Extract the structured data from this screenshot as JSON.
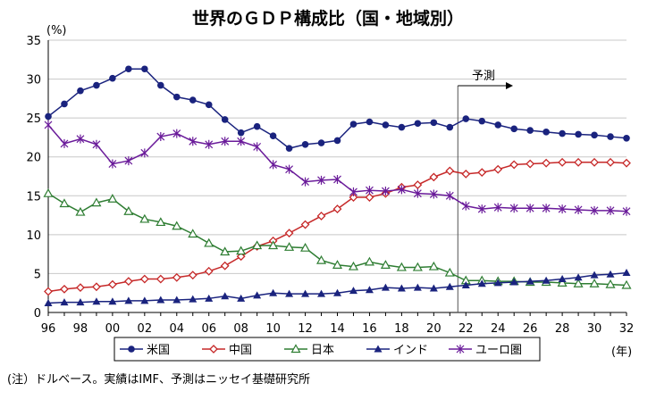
{
  "chart_data": {
    "type": "line",
    "title": "世界のＧＤＰ構成比（国・地域別）",
    "y_unit": "(%)",
    "x_unit": "(年)",
    "ylim": [
      0,
      35
    ],
    "yticks": [
      "0",
      "5",
      "10",
      "15",
      "20",
      "25",
      "30",
      "35"
    ],
    "xlim": [
      96,
      132
    ],
    "x": [
      96,
      97,
      98,
      99,
      100,
      101,
      102,
      103,
      104,
      105,
      106,
      107,
      108,
      109,
      110,
      111,
      112,
      113,
      114,
      115,
      116,
      117,
      118,
      119,
      120,
      121,
      122,
      123,
      124,
      125,
      126,
      127,
      128,
      129,
      130,
      131,
      132
    ],
    "xtick_values": [
      96,
      98,
      100,
      102,
      104,
      106,
      108,
      110,
      112,
      114,
      116,
      118,
      120,
      122,
      124,
      126,
      128,
      130,
      132
    ],
    "xtick_labels": [
      "96",
      "98",
      "00",
      "02",
      "04",
      "06",
      "08",
      "10",
      "12",
      "14",
      "16",
      "18",
      "20",
      "22",
      "24",
      "26",
      "28",
      "30",
      "32"
    ],
    "forecast": {
      "label": "予測",
      "start_x": 121.5
    },
    "grid": "horizontal",
    "legend_position": "bottom",
    "series": [
      {
        "name": "米国",
        "color": "#1a237e",
        "marker": "circle",
        "values": [
          25.2,
          26.8,
          28.5,
          29.2,
          30.1,
          31.3,
          31.3,
          29.2,
          27.7,
          27.3,
          26.7,
          24.8,
          23.1,
          23.9,
          22.7,
          21.1,
          21.6,
          21.8,
          22.1,
          24.2,
          24.5,
          24.1,
          23.8,
          24.3,
          24.4,
          23.8,
          24.9,
          24.6,
          24.1,
          23.6,
          23.4,
          23.2,
          23.0,
          22.9,
          22.8,
          22.6,
          22.4
        ]
      },
      {
        "name": "中国",
        "color": "#c62828",
        "marker": "diamond",
        "values": [
          2.7,
          3.0,
          3.2,
          3.3,
          3.6,
          4.0,
          4.3,
          4.3,
          4.5,
          4.8,
          5.3,
          6.0,
          7.2,
          8.5,
          9.2,
          10.2,
          11.3,
          12.4,
          13.3,
          14.8,
          14.8,
          15.3,
          16.1,
          16.4,
          17.4,
          18.2,
          17.8,
          18.0,
          18.4,
          19.0,
          19.1,
          19.2,
          19.3,
          19.3,
          19.3,
          19.3,
          19.2
        ]
      },
      {
        "name": "日本",
        "color": "#2e7d32",
        "marker": "triangle-open",
        "values": [
          15.3,
          14.0,
          12.9,
          14.1,
          14.6,
          13.0,
          12.0,
          11.6,
          11.1,
          10.1,
          8.9,
          7.8,
          7.9,
          8.6,
          8.6,
          8.4,
          8.3,
          6.7,
          6.1,
          5.9,
          6.5,
          6.1,
          5.8,
          5.8,
          5.9,
          5.1,
          4.1,
          4.1,
          4.0,
          4.0,
          3.9,
          3.9,
          3.8,
          3.7,
          3.7,
          3.6,
          3.5
        ]
      },
      {
        "name": "インド",
        "color": "#1a237e",
        "marker": "triangle-filled",
        "values": [
          1.2,
          1.3,
          1.3,
          1.4,
          1.4,
          1.5,
          1.5,
          1.6,
          1.6,
          1.7,
          1.8,
          2.1,
          1.8,
          2.2,
          2.5,
          2.4,
          2.4,
          2.4,
          2.5,
          2.8,
          2.9,
          3.2,
          3.1,
          3.2,
          3.1,
          3.3,
          3.5,
          3.7,
          3.8,
          3.9,
          4.0,
          4.1,
          4.3,
          4.5,
          4.8,
          4.9,
          5.1
        ]
      },
      {
        "name": "ユーロ圏",
        "color": "#6a1b9a",
        "marker": "star",
        "values": [
          24.1,
          21.7,
          22.3,
          21.6,
          19.1,
          19.5,
          20.5,
          22.6,
          23.0,
          22.0,
          21.6,
          22.0,
          22.0,
          21.3,
          19.0,
          18.4,
          16.8,
          17.0,
          17.1,
          15.5,
          15.7,
          15.6,
          15.8,
          15.3,
          15.2,
          15.0,
          13.7,
          13.3,
          13.5,
          13.4,
          13.4,
          13.4,
          13.3,
          13.2,
          13.1,
          13.1,
          13.0
        ]
      }
    ]
  },
  "note": "(注）ドルベース。実績はIMF、予測はニッセイ基礎研究所"
}
